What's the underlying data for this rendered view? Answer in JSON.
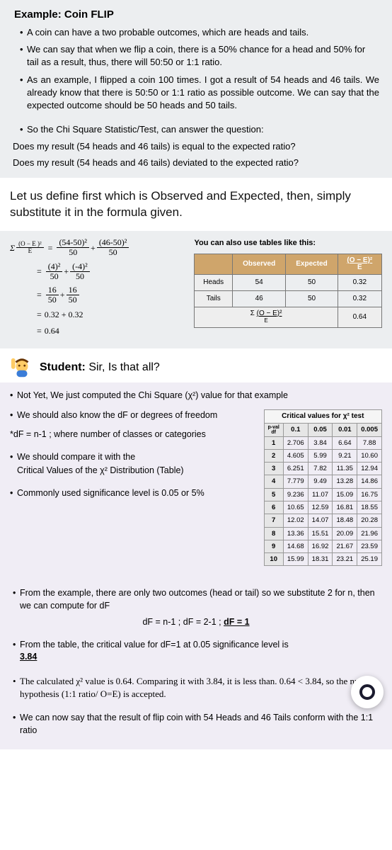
{
  "example": {
    "title": "Example: Coin FLIP",
    "bullets": [
      "A coin can have a two probable outcomes, which are heads and tails.",
      "We can say that when we flip a coin, there is a 50% chance for a head and 50% for tail as a result, thus, there will 50:50 or 1:1 ratio.",
      "As an example, I flipped a coin 100 times. I got a result of 54 heads and 46 tails. We already know that there is 50:50 or 1:1 ratio as possible outcome. We can say that the expected outcome should be 50 heads and 50 tails."
    ],
    "q_intro": "So the Chi Square Statistic/Test, can answer the question:",
    "q1": "Does my result (54 heads and 46 tails) is equal to the expected ratio?",
    "q2": "Does my result (54 heads and 46 tails) deviated to the expected ratio?"
  },
  "define_intro": "Let us define first which is Observed and Expected, then, simply substitute it in the formula given.",
  "formula": {
    "line1_num1": "(54-50)²",
    "line1_den1": "50",
    "line1_num2": "(46-50)²",
    "line1_den2": "50",
    "line2_num1": "(4)²",
    "line2_den1": "50",
    "line2_num2": "(-4)²",
    "line2_den2": "50",
    "line3_num1": "16",
    "line3_den1": "50",
    "line3_num2": "16",
    "line3_den2": "50",
    "line4": "0.32 + 0.32",
    "line5": "0.64",
    "sum_label": "Σ",
    "oe_label": "(O − E )²",
    "e_label": "E"
  },
  "calc_table": {
    "hint": "You can also use tables like this:",
    "headers": [
      "",
      "Observed",
      "Expected",
      "(O − E)²\nE"
    ],
    "rows": [
      [
        "Heads",
        "54",
        "50",
        "0.32"
      ],
      [
        "Tails",
        "46",
        "50",
        "0.32"
      ]
    ],
    "sum_label": "Σ (O − E)²\nE",
    "sum_val": "0.64",
    "header_bg": "#cfa56b"
  },
  "student": {
    "prefix": "Student:",
    "question": "Sir, Is that all?"
  },
  "notyet": {
    "line1": "Not Yet, We just computed the Chi Square (χ²) value for that example",
    "b1": "We should also know the dF or degrees of freedom",
    "b2": "*dF = n-1 ; where number of classes or categories",
    "b3": "We should compare it with the",
    "b3b": "Critical Values of the χ² Distribution (Table)",
    "b4": "Commonly used significance level is 0.05 or 5%"
  },
  "crit_table": {
    "caption": "Critical values for χ² test",
    "col_header_label": "p-val\ndf",
    "alpha": [
      "0.1",
      "0.05",
      "0.01",
      "0.005"
    ],
    "rows": [
      [
        "1",
        "2.706",
        "3.84",
        "6.64",
        "7.88"
      ],
      [
        "2",
        "4.605",
        "5.99",
        "9.21",
        "10.60"
      ],
      [
        "3",
        "6.251",
        "7.82",
        "11.35",
        "12.94"
      ],
      [
        "4",
        "7.779",
        "9.49",
        "13.28",
        "14.86"
      ],
      [
        "5",
        "9.236",
        "11.07",
        "15.09",
        "16.75"
      ],
      [
        "6",
        "10.65",
        "12.59",
        "16.81",
        "18.55"
      ],
      [
        "7",
        "12.02",
        "14.07",
        "18.48",
        "20.28"
      ],
      [
        "8",
        "13.36",
        "15.51",
        "20.09",
        "21.96"
      ],
      [
        "9",
        "14.68",
        "16.92",
        "21.67",
        "23.59"
      ],
      [
        "10",
        "15.99",
        "18.31",
        "23.21",
        "25.19"
      ]
    ]
  },
  "conclusion": {
    "c1a": "From the example, there are only two outcomes (head or tail) so we substitute 2 for n, then we can compute for dF",
    "c1b": "dF = n-1  ;  dF = 2-1 ;  ",
    "c1c": "dF = 1",
    "c2a": "From the table, the critical value for dF=1 at 0.05 significance level is ",
    "c2b": "3.84",
    "c3": "The calculated χ² value is 0.64. Comparing it with 3.84, it is less than. 0.64 < 3.84, so the null hypothesis (1:1 ratio/ O=E) is accepted.",
    "c4": "We can now say that the result of flip coin with 54 Heads and 46 Tails conform with the 1:1 ratio"
  }
}
